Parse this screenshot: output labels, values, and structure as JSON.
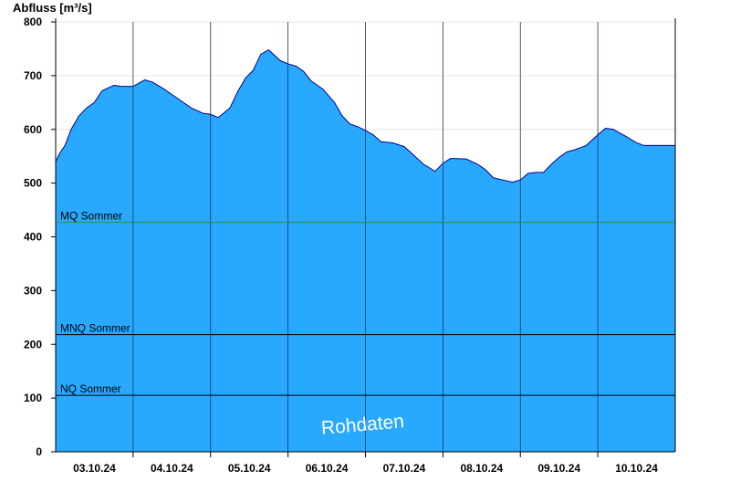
{
  "chart_data": {
    "type": "area",
    "ylabel": "Abfluss [m³/s]",
    "ylim": [
      0,
      800
    ],
    "yticks": [
      0,
      100,
      200,
      300,
      400,
      500,
      600,
      700,
      800
    ],
    "xlim": [
      0,
      8
    ],
    "xtick_labels": [
      {
        "pos": 0.5,
        "label": "03.10.24"
      },
      {
        "pos": 1.5,
        "label": "04.10.24"
      },
      {
        "pos": 2.5,
        "label": "05.10.24"
      },
      {
        "pos": 3.5,
        "label": "06.10.24"
      },
      {
        "pos": 4.5,
        "label": "07.10.24"
      },
      {
        "pos": 5.5,
        "label": "08.10.24"
      },
      {
        "pos": 6.5,
        "label": "09.10.24"
      },
      {
        "pos": 7.5,
        "label": "10.10.24"
      }
    ],
    "day_boundaries": [
      1,
      2,
      3,
      4,
      5,
      6,
      7
    ],
    "gridlines_y": [
      100,
      200,
      300,
      400,
      500,
      600,
      700,
      800
    ],
    "reference_lines": [
      {
        "name": "MQ Sommer",
        "value": 427,
        "color": "#2e8b57"
      },
      {
        "name": "MNQ Sommer",
        "value": 218,
        "color": "#000000"
      },
      {
        "name": "NQ Sommer",
        "value": 105,
        "color": "#000000"
      }
    ],
    "watermark": "Rohdaten",
    "series": [
      {
        "fill": "#29a8ff",
        "stroke": "#00008b",
        "x": [
          0,
          0.05,
          0.12,
          0.2,
          0.3,
          0.4,
          0.5,
          0.6,
          0.75,
          0.85,
          1.0,
          1.15,
          1.25,
          1.4,
          1.5,
          1.6,
          1.75,
          1.9,
          2.0,
          2.1,
          2.25,
          2.35,
          2.45,
          2.55,
          2.65,
          2.75,
          2.9,
          3.0,
          3.1,
          3.2,
          3.3,
          3.45,
          3.6,
          3.7,
          3.8,
          3.9,
          4.0,
          4.1,
          4.2,
          4.35,
          4.5,
          4.6,
          4.75,
          4.9,
          5.0,
          5.1,
          5.3,
          5.45,
          5.55,
          5.65,
          5.8,
          5.9,
          6.0,
          6.1,
          6.2,
          6.3,
          6.4,
          6.5,
          6.6,
          6.7,
          6.85,
          7.0,
          7.1,
          7.2,
          7.35,
          7.5,
          7.6,
          7.7,
          7.85,
          8.0
        ],
        "values": [
          540,
          555,
          570,
          600,
          625,
          640,
          650,
          672,
          682,
          680,
          680,
          692,
          688,
          675,
          665,
          655,
          640,
          630,
          628,
          622,
          640,
          670,
          695,
          710,
          740,
          748,
          728,
          722,
          718,
          708,
          690,
          675,
          650,
          625,
          610,
          605,
          598,
          590,
          577,
          575,
          568,
          555,
          535,
          522,
          537,
          546,
          545,
          535,
          525,
          510,
          505,
          502,
          506,
          518,
          520,
          520,
          535,
          548,
          558,
          562,
          570,
          590,
          602,
          600,
          588,
          575,
          570,
          570,
          570,
          570
        ]
      }
    ]
  }
}
